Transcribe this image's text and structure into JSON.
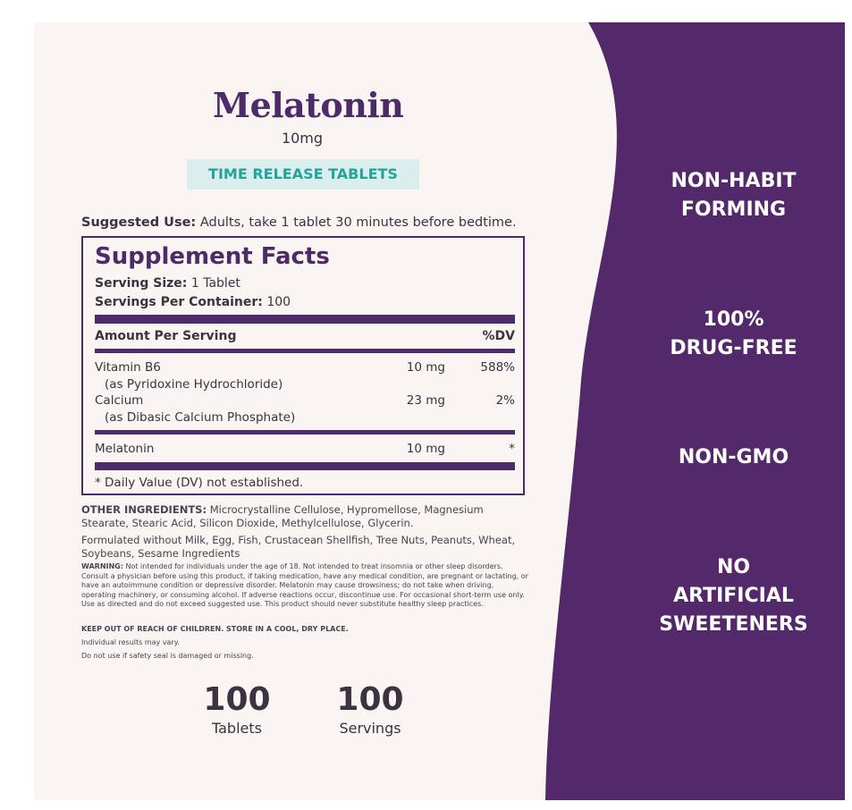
{
  "product": {
    "name": "Melatonin",
    "dose": "10mg",
    "banner": "TIME RELEASE TABLETS"
  },
  "suggested_use": {
    "label": "Suggested Use:",
    "text": "Adults, take 1 tablet 30 minutes before bedtime."
  },
  "supplement_facts": {
    "title": "Supplement Facts",
    "serving_size_label": "Serving Size:",
    "serving_size_value": "1 Tablet",
    "servings_label": "Servings Per Container:",
    "servings_value": "100",
    "amount_header": "Amount Per Serving",
    "dv_header": "%DV",
    "rows": [
      {
        "name": "Vitamin B6",
        "sub": "(as Pyridoxine Hydrochloride)",
        "amount": "10 mg",
        "dv": "588%"
      },
      {
        "name": "Calcium",
        "sub": "(as Dibasic Calcium Phosphate)",
        "amount": "23 mg",
        "dv": "2%"
      },
      {
        "name": "Melatonin",
        "sub": "",
        "amount": "10 mg",
        "dv": "*"
      }
    ],
    "footnote": "* Daily Value (DV) not established."
  },
  "other_ingredients": {
    "label": "OTHER INGREDIENTS:",
    "text": "Microcrystalline Cellulose, Hypromellose, Magnesium Stearate, Stearic Acid, Silicon Dioxide, Methylcellulose, Glycerin."
  },
  "formulated_without": "Formulated without Milk, Egg, Fish, Crustacean Shellfish, Tree Nuts, Peanuts, Wheat, Soybeans, Sesame Ingredients",
  "warning": {
    "label": "WARNING:",
    "text": "Not intended for individuals under the age of 18. Not intended to treat insomnia or other sleep disorders. Consult a physician before using this product, if taking medication, have any medical condition, are pregnant or lactating, or have an autoimmune condition or depressive disorder. Melatonin may cause drowsiness; do not take when driving, operating machinery, or consuming alcohol. If adverse reactions occur, discontinue use. For occasional short-term use only. Use as directed and do not exceed suggested use. This product should never substitute healthy sleep practices."
  },
  "keep_out": "KEEP OUT OF REACH OF CHILDREN. STORE IN A COOL, DRY PLACE.",
  "individual_results": "Individual results may vary.",
  "safety_seal": "Do not use if safety seal is damaged or missing.",
  "counts": [
    {
      "number": "100",
      "label": "Tablets"
    },
    {
      "number": "100",
      "label": "Servings"
    }
  ],
  "claims": {
    "c1_line1": "NON-HABIT",
    "c1_line2": "FORMING",
    "c2_line1": "100%",
    "c2_line2": "DRUG-FREE",
    "c3_line1": "NON-GMO",
    "c4_line1": "NO",
    "c4_line2": "ARTIFICIAL",
    "c4_line3": "SWEETENERS"
  },
  "colors": {
    "brand_purple": "#53296b",
    "title_purple": "#4d2a68",
    "banner_bg": "#dbeeee",
    "banner_text": "#23a39a",
    "background": "#faf4f3"
  }
}
